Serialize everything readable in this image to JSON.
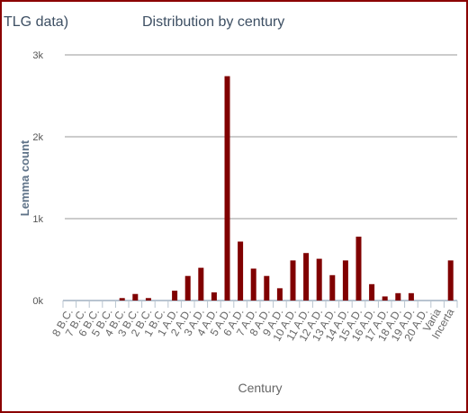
{
  "chart_data": {
    "type": "bar",
    "title_fragment": "TLG data)",
    "title": "Distribution by century",
    "xlabel": "Century",
    "ylabel": "Lemma count",
    "ylim": [
      0,
      3000
    ],
    "yticks": [
      0,
      1000,
      2000,
      3000
    ],
    "ytick_labels": [
      "0k",
      "1k",
      "2k",
      "3k"
    ],
    "grid": true,
    "bar_color": "#800000",
    "categories": [
      "8 B.C.",
      "7 B.C.",
      "6 B.C.",
      "5 B.C.",
      "4 B.C.",
      "3 B.C.",
      "2 B.C.",
      "1 B.C.",
      "1 A.D.",
      "2 A.D.",
      "3 A.D.",
      "4 A.D.",
      "5 A.D.",
      "6 A.D.",
      "7 A.D.",
      "8 A.D.",
      "9 A.D.",
      "10 A.D.",
      "11 A.D.",
      "12 A.D.",
      "13 A.D.",
      "14 A.D.",
      "15 A.D.",
      "16 A.D.",
      "17 A.D.",
      "18 A.D.",
      "19 A.D.",
      "20 A.D.",
      "Varia",
      "Incerta"
    ],
    "values": [
      0,
      0,
      0,
      0,
      30,
      80,
      30,
      0,
      120,
      300,
      400,
      100,
      2740,
      720,
      390,
      300,
      150,
      490,
      580,
      510,
      310,
      490,
      780,
      200,
      50,
      90,
      90,
      0,
      0,
      490
    ]
  }
}
